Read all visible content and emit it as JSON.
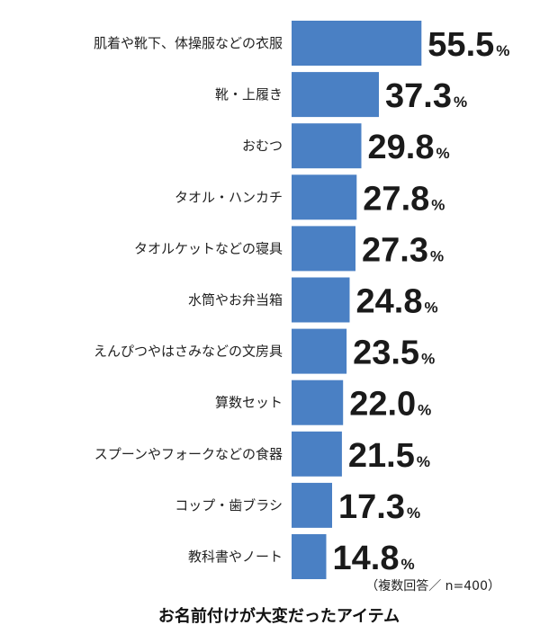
{
  "chart_data": {
    "type": "bar",
    "orientation": "horizontal",
    "title": "お名前付けが大変だったアイテム",
    "note": "（複数回答／ n=400）",
    "unit": "%",
    "bar_color": "#4a80c4",
    "categories": [
      "肌着や靴下、体操服などの衣服",
      "靴・上履き",
      "おむつ",
      "タオル・ハンカチ",
      "タオルケットなどの寝具",
      "水筒やお弁当箱",
      "えんぴつやはさみなどの文房具",
      "算数セット",
      "スプーンやフォークなどの食器",
      "コップ・歯ブラシ",
      "教科書やノート"
    ],
    "values": [
      55.5,
      37.3,
      29.8,
      27.8,
      27.3,
      24.8,
      23.5,
      22.0,
      21.5,
      17.3,
      14.8
    ],
    "value_labels": [
      "55.5",
      "37.3",
      "29.8",
      "27.8",
      "27.3",
      "24.8",
      "23.5",
      "22.0",
      "21.5",
      "17.3",
      "14.8"
    ],
    "grid": false,
    "legend": "none"
  }
}
